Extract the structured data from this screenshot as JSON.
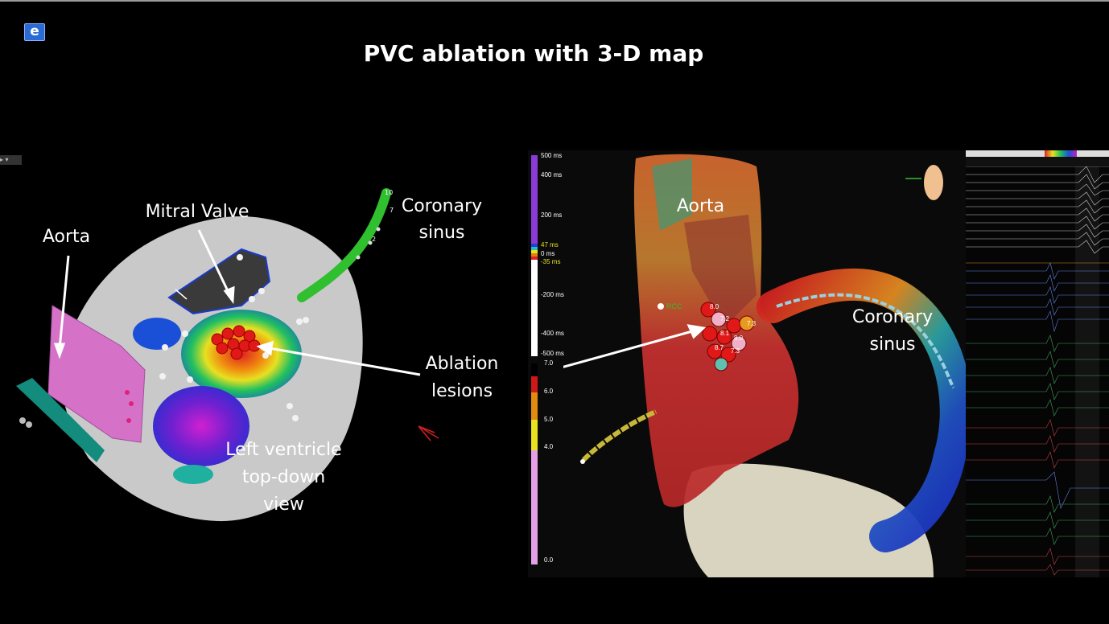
{
  "title": "PVC ablation with 3-D map",
  "logo": "e",
  "left_panel": {
    "labels": {
      "aorta": "Aorta",
      "mitral_valve": "Mitral Valve",
      "coronary_sinus_1": "Coronary",
      "coronary_sinus_2": "sinus",
      "ablation_1": "Ablation",
      "ablation_2": "lesions",
      "lv_1": "Left ventricle",
      "lv_2": "top-down",
      "lv_3": "view"
    },
    "catheter_numbers": [
      "10",
      "7",
      "2"
    ]
  },
  "right_panel": {
    "labels": {
      "aorta": "Aorta",
      "coronary_1": "Coronary",
      "coronary_2": "sinus",
      "rcc": "RCC",
      "lesion_values": [
        "8.0",
        "8.1",
        "8.0",
        "8.7",
        "7.3",
        "7.3",
        "7.2"
      ]
    },
    "time_scale": [
      "500 ms",
      "400 ms",
      "200 ms",
      "47 ms",
      "0 ms",
      "-35 ms",
      "-200 ms",
      "-400 ms",
      "-500 ms"
    ],
    "ablation_scale": [
      "7.0",
      "6.0",
      "5.0",
      "4.0",
      "0.0"
    ]
  },
  "colors": {
    "background": "#000000",
    "text": "#ffffff",
    "purple_scale": "#8a3bd6",
    "lesion_red": "#e01818",
    "catheter_green": "#2fbf2f"
  }
}
